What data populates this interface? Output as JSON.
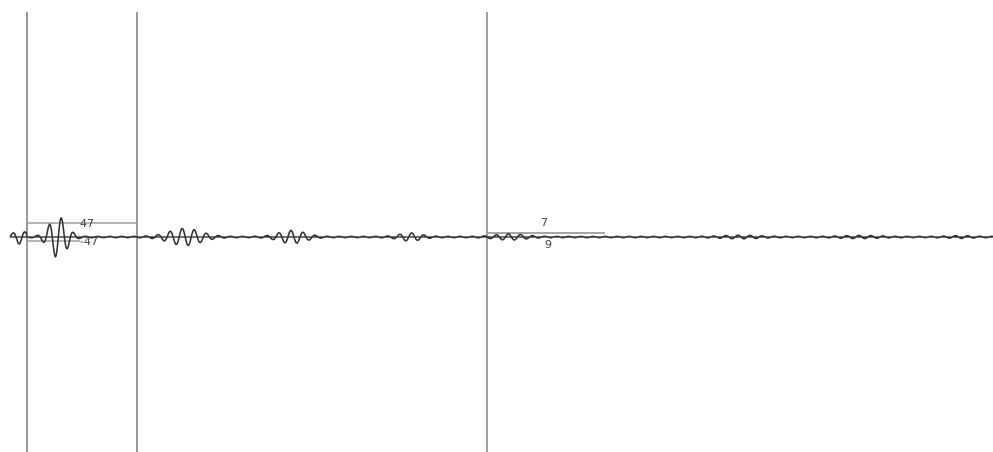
{
  "chart_data": {
    "type": "line",
    "title": "",
    "xlabel": "",
    "ylabel": "",
    "grid": false,
    "legend": "none",
    "colors": {
      "trace": "#333333",
      "cursor": "#555555",
      "marker": "#777777",
      "baseline": "#222222"
    },
    "cursors": [
      "0",
      "1",
      "2"
    ],
    "markers": [
      {
        "top_label": "47",
        "bottom_label": "-47"
      },
      {
        "top_label": "7",
        "bottom_label": "9"
      }
    ]
  }
}
